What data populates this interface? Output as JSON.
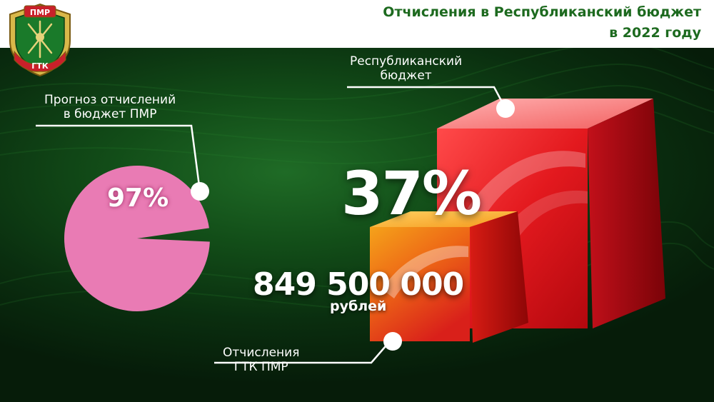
{
  "header": {
    "title_line1": "Отчисления в Республиканский бюджет",
    "title_line2": "в 2022 году"
  },
  "emblem": {
    "top_text": "ПМР",
    "bottom_text": "ГТК"
  },
  "pie": {
    "label_line1": "Прогноз отчислений",
    "label_line2": "в бюджет ПМР",
    "value_label": "97%",
    "fraction": 0.97,
    "color": "#e97bb4"
  },
  "big_cube": {
    "label_line1": "Республиканский",
    "label_line2": "бюджет",
    "color": "#e3191e"
  },
  "small_cube": {
    "label_line1": "Отчисления",
    "label_line2": "ГТК ПМР",
    "color": "#ee6a16"
  },
  "share": {
    "percent_label": "37%"
  },
  "amount": {
    "value": "849 500 000",
    "unit": "рублей"
  },
  "colors": {
    "header_title": "#1d6a1f",
    "background": "#124d18"
  }
}
